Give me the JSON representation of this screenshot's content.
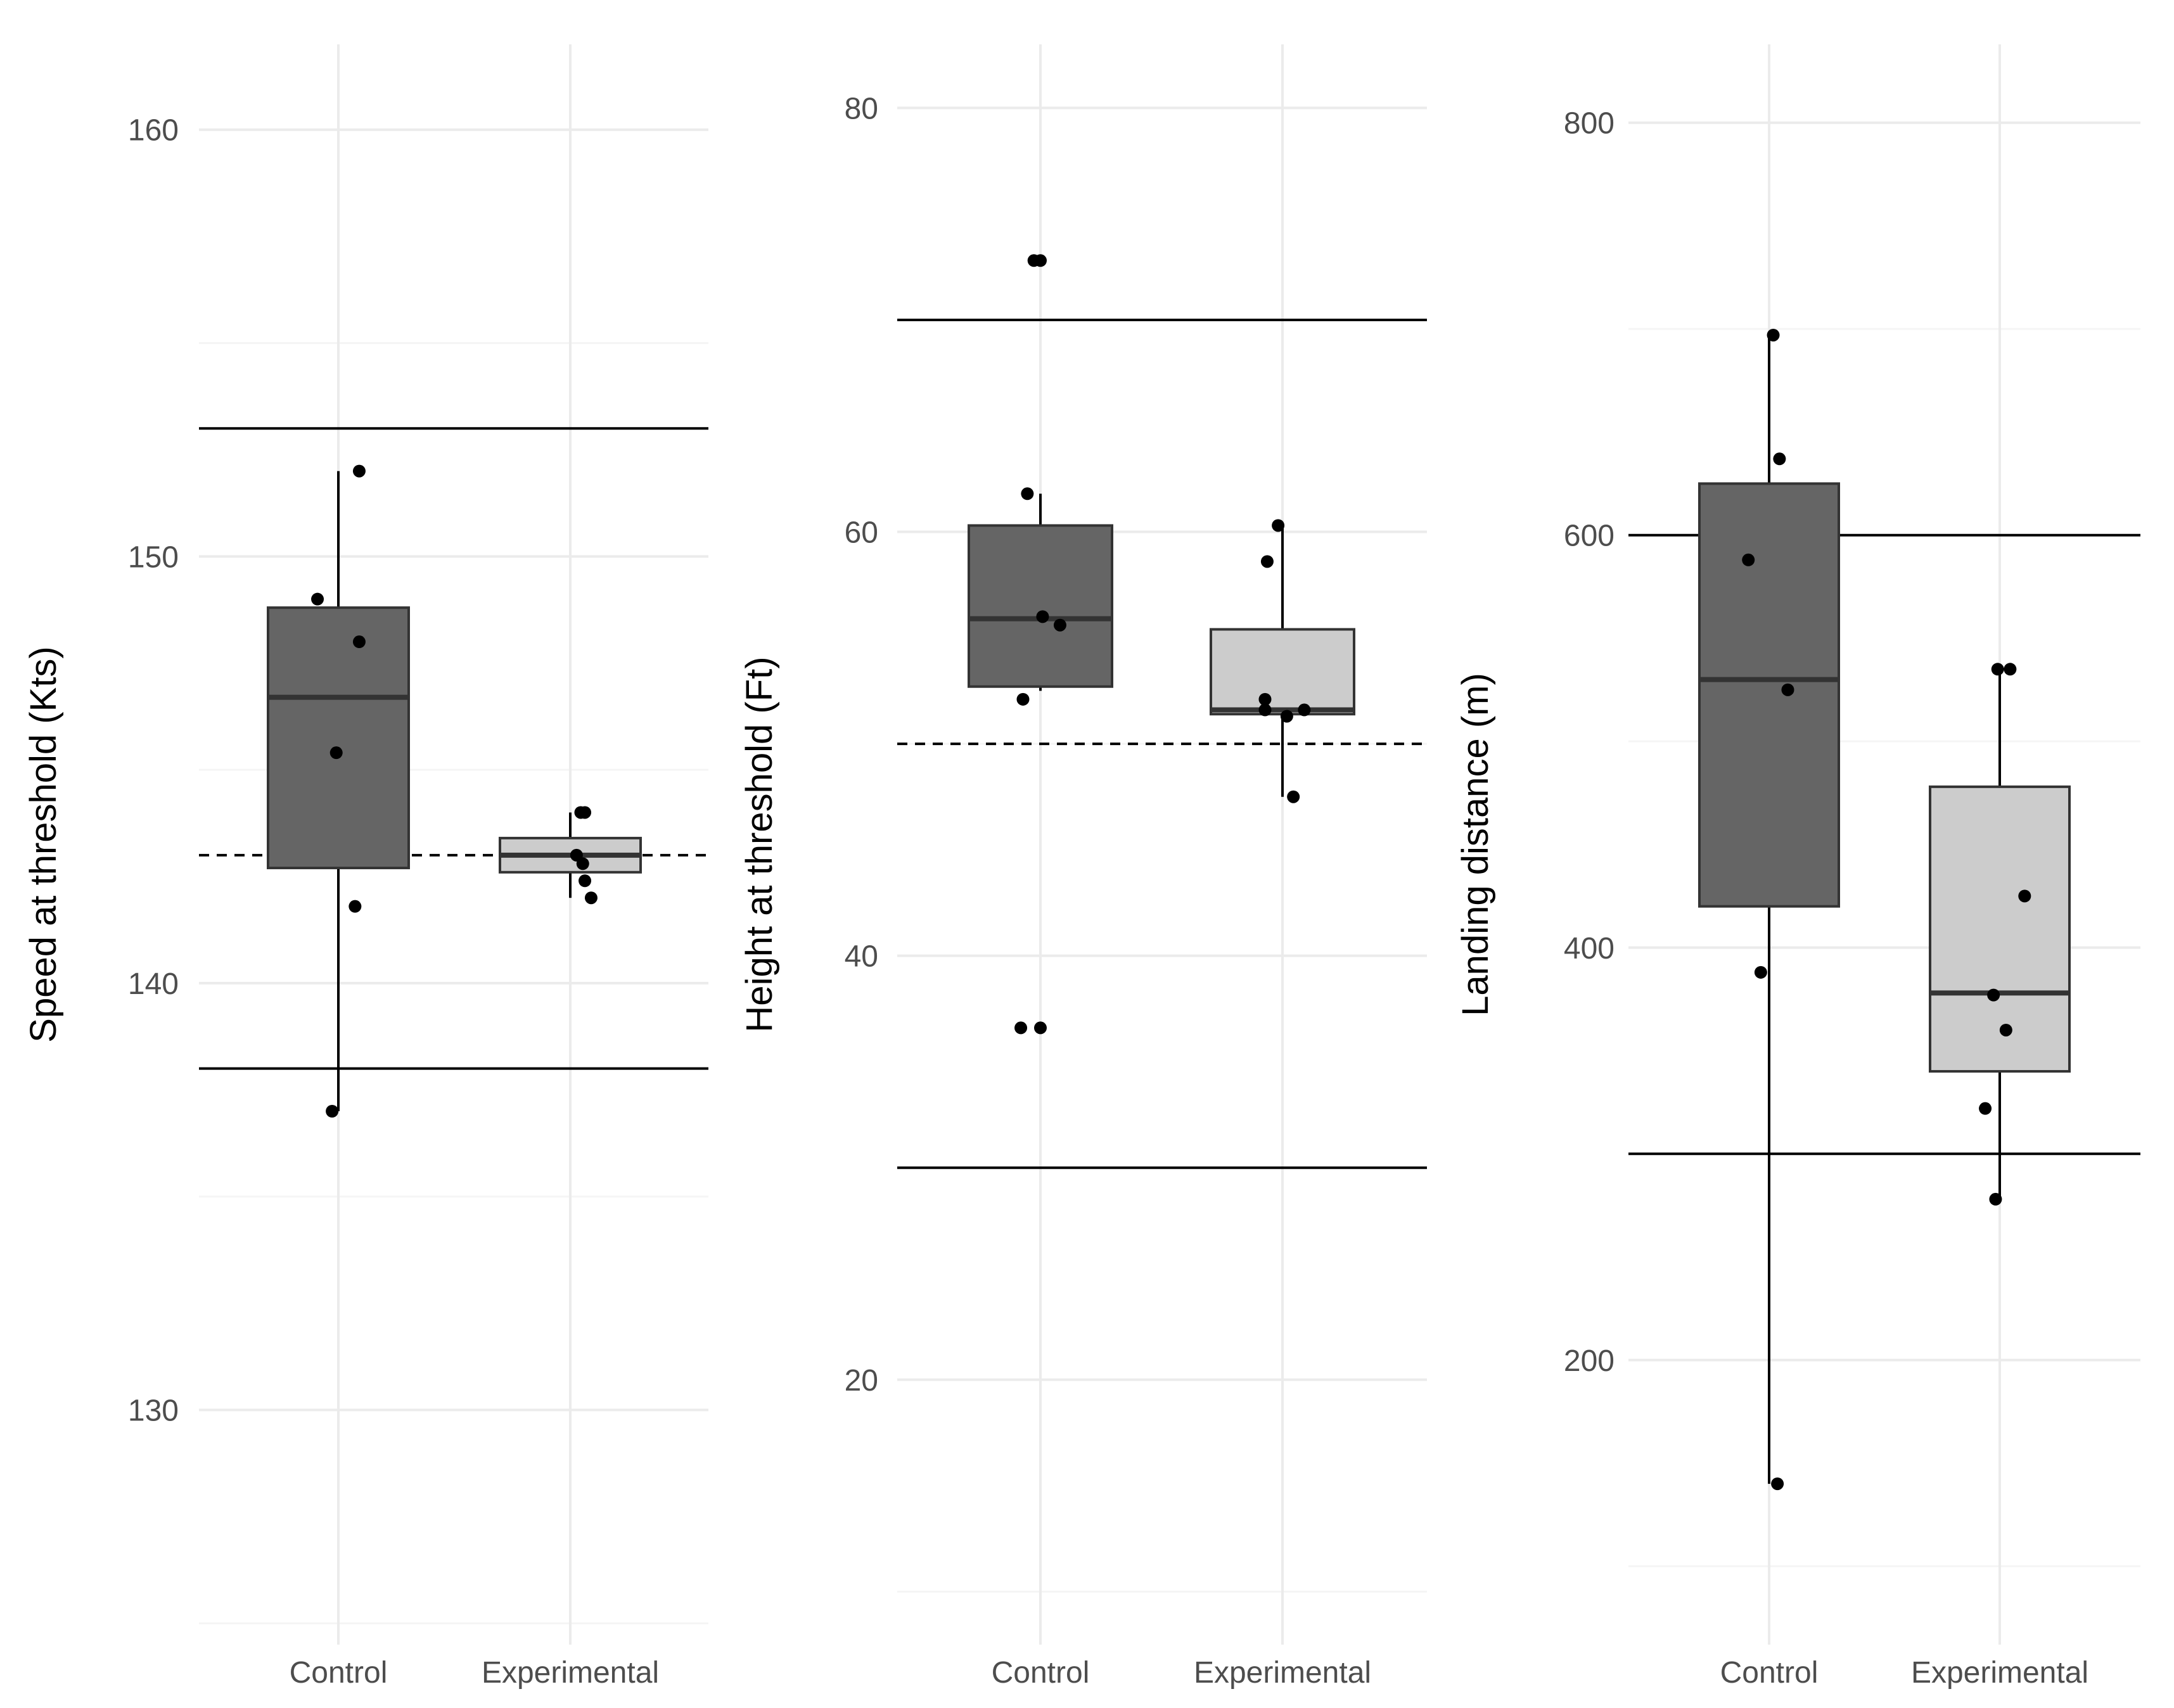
{
  "colors": {
    "background": "#ffffff",
    "grid_major": "#ebebeb",
    "grid_minor": "#f5f5f5",
    "control_fill": "#656565",
    "experimental_fill": "#cccccc",
    "box_line": "#333333",
    "ref_line": "#000000",
    "point": "#000000",
    "tick_text": "#4d4d4d"
  },
  "chart_data": [
    {
      "type": "box",
      "ylabel": "Speed at threshold (Kts)",
      "xlabel": "",
      "categories": [
        "Control",
        "Experimental"
      ],
      "ylim": [
        124.5,
        162
      ],
      "yticks": [
        130,
        140,
        150,
        160
      ],
      "yticks_minor": [
        125,
        135,
        145,
        155
      ],
      "reference_lines": [
        {
          "y": 153,
          "style": "solid"
        },
        {
          "y": 138,
          "style": "solid"
        },
        {
          "y": 143,
          "style": "dashed"
        }
      ],
      "boxes": [
        {
          "category": "Control",
          "lower_whisker": 137,
          "q1": 142.7,
          "median": 146.7,
          "q3": 148.8,
          "upper_whisker": 152
        },
        {
          "category": "Experimental",
          "lower_whisker": 142,
          "q1": 142.6,
          "median": 143,
          "q3": 143.4,
          "upper_whisker": 144
        }
      ],
      "points": [
        {
          "category": "Control",
          "y": 152,
          "jitter": 0.1
        },
        {
          "category": "Control",
          "y": 149,
          "jitter": -0.1
        },
        {
          "category": "Control",
          "y": 148,
          "jitter": 0.1
        },
        {
          "category": "Control",
          "y": 145.4,
          "jitter": -0.01
        },
        {
          "category": "Control",
          "y": 141.8,
          "jitter": 0.08
        },
        {
          "category": "Control",
          "y": 137,
          "jitter": -0.03
        },
        {
          "category": "Experimental",
          "y": 144,
          "jitter": 0.05
        },
        {
          "category": "Experimental",
          "y": 144,
          "jitter": 0.07
        },
        {
          "category": "Experimental",
          "y": 143,
          "jitter": 0.03
        },
        {
          "category": "Experimental",
          "y": 142.8,
          "jitter": 0.06
        },
        {
          "category": "Experimental",
          "y": 142.4,
          "jitter": 0.07
        },
        {
          "category": "Experimental",
          "y": 142,
          "jitter": 0.1
        }
      ]
    },
    {
      "type": "box",
      "ylabel": "Height at threshold (Ft)",
      "xlabel": "",
      "categories": [
        "Control",
        "Experimental"
      ],
      "ylim": [
        7.5,
        83
      ],
      "yticks": [
        20,
        40,
        60,
        80
      ],
      "yticks_minor": [
        10,
        30,
        50,
        70
      ],
      "reference_lines": [
        {
          "y": 70,
          "style": "solid"
        },
        {
          "y": 30,
          "style": "solid"
        },
        {
          "y": 50,
          "style": "dashed"
        }
      ],
      "boxes": [
        {
          "category": "Control",
          "lower_whisker": 52.5,
          "q1": 52.7,
          "median": 55.9,
          "q3": 60.3,
          "upper_whisker": 61.8
        },
        {
          "category": "Experimental",
          "lower_whisker": 47.5,
          "q1": 51.4,
          "median": 51.6,
          "q3": 55.4,
          "upper_whisker": 60.3
        }
      ],
      "points": [
        {
          "category": "Control",
          "y": 72.8,
          "jitter": -0.03
        },
        {
          "category": "Control",
          "y": 72.8,
          "jitter": 0.0
        },
        {
          "category": "Control",
          "y": 61.8,
          "jitter": -0.06
        },
        {
          "category": "Control",
          "y": 56,
          "jitter": 0.01
        },
        {
          "category": "Control",
          "y": 55.6,
          "jitter": 0.09
        },
        {
          "category": "Control",
          "y": 52.1,
          "jitter": -0.08
        },
        {
          "category": "Control",
          "y": 36.6,
          "jitter": -0.09
        },
        {
          "category": "Control",
          "y": 36.6,
          "jitter": 0.0
        },
        {
          "category": "Experimental",
          "y": 60.3,
          "jitter": -0.02
        },
        {
          "category": "Experimental",
          "y": 58.6,
          "jitter": -0.07
        },
        {
          "category": "Experimental",
          "y": 52.1,
          "jitter": -0.08
        },
        {
          "category": "Experimental",
          "y": 51.6,
          "jitter": -0.08
        },
        {
          "category": "Experimental",
          "y": 51.3,
          "jitter": 0.02
        },
        {
          "category": "Experimental",
          "y": 51.6,
          "jitter": 0.1
        },
        {
          "category": "Experimental",
          "y": 47.5,
          "jitter": 0.05
        }
      ]
    },
    {
      "type": "box",
      "ylabel": "Landing distance (m)",
      "xlabel": "",
      "categories": [
        "Control",
        "Experimental"
      ],
      "ylim": [
        62,
        838
      ],
      "yticks": [
        200,
        400,
        600,
        800
      ],
      "yticks_minor": [
        100,
        300,
        500,
        700
      ],
      "reference_lines": [
        {
          "y": 600,
          "style": "solid"
        },
        {
          "y": 300,
          "style": "solid"
        }
      ],
      "boxes": [
        {
          "category": "Control",
          "lower_whisker": 140,
          "q1": 420,
          "median": 530,
          "q3": 625,
          "upper_whisker": 697
        },
        {
          "category": "Experimental",
          "lower_whisker": 278,
          "q1": 340,
          "median": 378,
          "q3": 478,
          "upper_whisker": 535
        }
      ],
      "points": [
        {
          "category": "Control",
          "y": 697,
          "jitter": 0.02
        },
        {
          "category": "Control",
          "y": 637,
          "jitter": 0.05
        },
        {
          "category": "Control",
          "y": 588,
          "jitter": -0.1
        },
        {
          "category": "Control",
          "y": 525,
          "jitter": 0.09
        },
        {
          "category": "Control",
          "y": 388,
          "jitter": -0.04
        },
        {
          "category": "Control",
          "y": 140,
          "jitter": 0.04
        },
        {
          "category": "Experimental",
          "y": 535,
          "jitter": -0.01
        },
        {
          "category": "Experimental",
          "y": 535,
          "jitter": 0.05
        },
        {
          "category": "Experimental",
          "y": 425,
          "jitter": 0.12
        },
        {
          "category": "Experimental",
          "y": 377,
          "jitter": -0.03
        },
        {
          "category": "Experimental",
          "y": 360,
          "jitter": 0.03
        },
        {
          "category": "Experimental",
          "y": 322,
          "jitter": -0.07
        },
        {
          "category": "Experimental",
          "y": 278,
          "jitter": -0.02
        }
      ]
    }
  ]
}
